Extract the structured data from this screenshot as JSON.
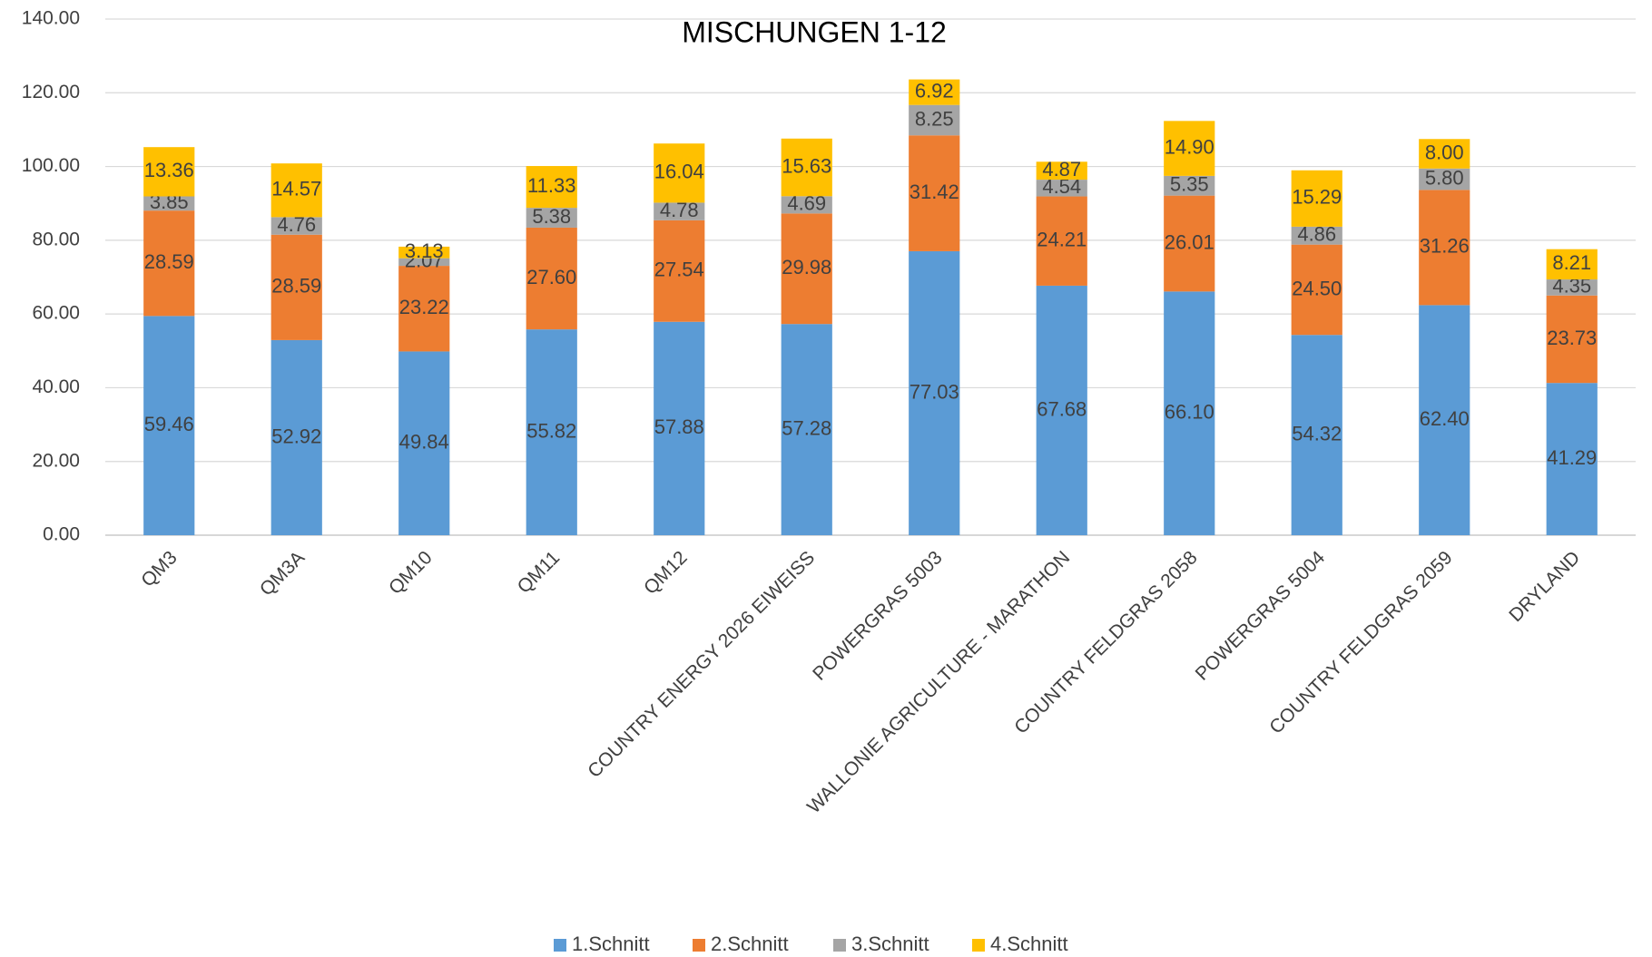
{
  "chart_data": {
    "type": "stacked_bar",
    "title": "MISCHUNGEN 1-12",
    "categories": [
      "QM3",
      "QM3A",
      "QM10",
      "QM11",
      "QM12",
      "COUNTRY ENERGY 2026 EIWEISS",
      "POWERGRAS 5003",
      "WALLONIE AGRICULTURE - MARATHON",
      "COUNTRY FELDGRAS 2058",
      "POWERGRAS 5004",
      "COUNTRY FELDGRAS 2059",
      "DRYLAND"
    ],
    "series": [
      {
        "name": "1.Schnitt",
        "color": "#5b9bd5",
        "values": [
          59.46,
          52.92,
          49.84,
          55.82,
          57.88,
          57.28,
          77.03,
          67.68,
          66.1,
          54.32,
          62.4,
          41.29
        ],
        "value_labels": [
          "59.46",
          "52.92",
          "49.84",
          "55.82",
          "57.88",
          "57.28",
          "77.03",
          "67.68",
          "66.10",
          "54.32",
          "62.40",
          "41.29"
        ]
      },
      {
        "name": "2.Schnitt",
        "color": "#ed7d31",
        "values": [
          28.59,
          28.59,
          23.22,
          27.6,
          27.54,
          29.98,
          31.42,
          24.21,
          26.01,
          24.5,
          31.26,
          23.73
        ],
        "value_labels": [
          "28.59",
          "28.59",
          "23.22",
          "27.60",
          "27.54",
          "29.98",
          "31.42",
          "24.21",
          "26.01",
          "24.50",
          "31.26",
          "23.73"
        ]
      },
      {
        "name": "3.Schnitt",
        "color": "#a5a5a5",
        "values": [
          3.85,
          4.76,
          2.07,
          5.38,
          4.78,
          4.69,
          8.25,
          4.54,
          5.35,
          4.86,
          5.8,
          4.35
        ],
        "value_labels": [
          "3.85",
          "4.76",
          "2.07",
          "5.38",
          "4.78",
          "4.69",
          "8.25",
          "4.54",
          "5.35",
          "4.86",
          "5.80",
          "4.35"
        ]
      },
      {
        "name": "4.Schnitt",
        "color": "#ffc000",
        "values": [
          13.36,
          14.57,
          3.13,
          11.33,
          16.04,
          15.63,
          6.92,
          4.87,
          14.9,
          15.29,
          8.0,
          8.21
        ],
        "value_labels": [
          "13.36",
          "14.57",
          "3.13",
          "11.33",
          "16.04",
          "15.63",
          "6.92",
          "4.87",
          "14.90",
          "15.29",
          "8.00",
          "8.21"
        ]
      }
    ],
    "ylim": [
      0,
      140
    ],
    "yticks": [
      {
        "value": 0,
        "label": "0.00"
      },
      {
        "value": 20,
        "label": "20.00"
      },
      {
        "value": 40,
        "label": "40.00"
      },
      {
        "value": 60,
        "label": "60.00"
      },
      {
        "value": 80,
        "label": "80.00"
      },
      {
        "value": 100,
        "label": "100.00"
      },
      {
        "value": 120,
        "label": "120.00"
      },
      {
        "value": 140,
        "label": "140.00"
      }
    ],
    "grid": true,
    "legend": "bottom"
  }
}
